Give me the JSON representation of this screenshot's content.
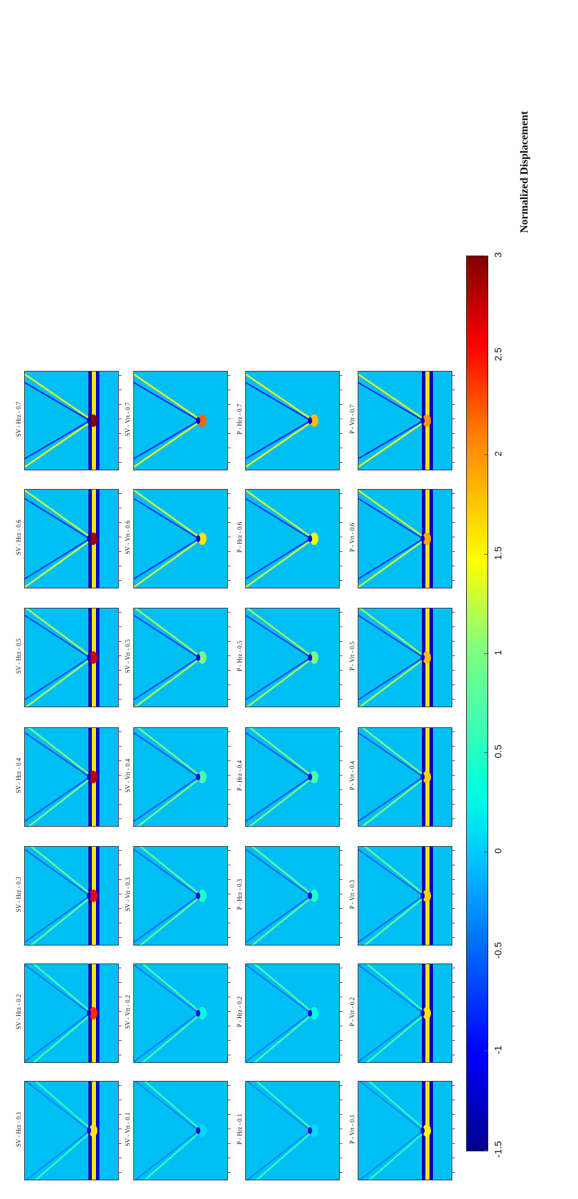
{
  "chart_data": {
    "type": "heatmap",
    "description_rows": [
      "SV - Hrz",
      "SV - Vrt",
      "P - Hrz",
      "P - Vrt"
    ],
    "angles": [
      "0.1",
      "0.2",
      "0.3",
      "0.4",
      "0.5",
      "0.6",
      "0.7"
    ],
    "panel_titles": [
      [
        "SV - Hrz - 0.1",
        "SV - Hrz - 0.2",
        "SV - Hrz - 0.3",
        "SV - Hrz - 0.4",
        "SV - Hrz - 0.5",
        "SV - Hrz - 0.6",
        "SV - Hrz - 0.7"
      ],
      [
        "SV - Vrt - 0.1",
        "SV - Vrt - 0.2",
        "SV - Vrt - 0.3",
        "SV - Vrt - 0.4",
        "SV - Vrt - 0.5",
        "SV - Vrt - 0.6",
        "SV - Vrt - 0.7"
      ],
      [
        "P - Hrz - 0.1",
        "P - Hrz - 0.2",
        "P - Hrz - 0.3",
        "P - Hrz - 0.4",
        "P - Hrz - 0.5",
        "P - Hrz - 0.6",
        "P - Hrz - 0.7"
      ],
      [
        "P - Vrt - 0.1",
        "P - Vrt - 0.2",
        "P - Vrt - 0.3",
        "P - Vrt - 0.4",
        "P - Vrt - 0.5",
        "P - Vrt - 0.6",
        "P - Vrt - 0.7"
      ]
    ],
    "peak_intensity": [
      [
        1.6,
        2.4,
        2.6,
        2.8,
        2.7,
        2.9,
        3.0
      ],
      [
        0.1,
        0.3,
        0.5,
        0.7,
        1.0,
        1.6,
        2.2
      ],
      [
        0.1,
        0.3,
        0.5,
        0.7,
        1.0,
        1.4,
        1.8
      ],
      [
        1.5,
        1.6,
        1.7,
        1.7,
        1.8,
        1.9,
        2.0
      ]
    ],
    "colorbar": {
      "label": "Normalized Displacement",
      "min": -1.5,
      "max": 3,
      "ticks": [
        "-1.5",
        "-1",
        "-0.5",
        "0",
        "0.5",
        "1",
        "1.5",
        "2",
        "2.5",
        "3"
      ],
      "colormap": "jet"
    },
    "orientation": "rotated 90deg counter-clockwise"
  }
}
